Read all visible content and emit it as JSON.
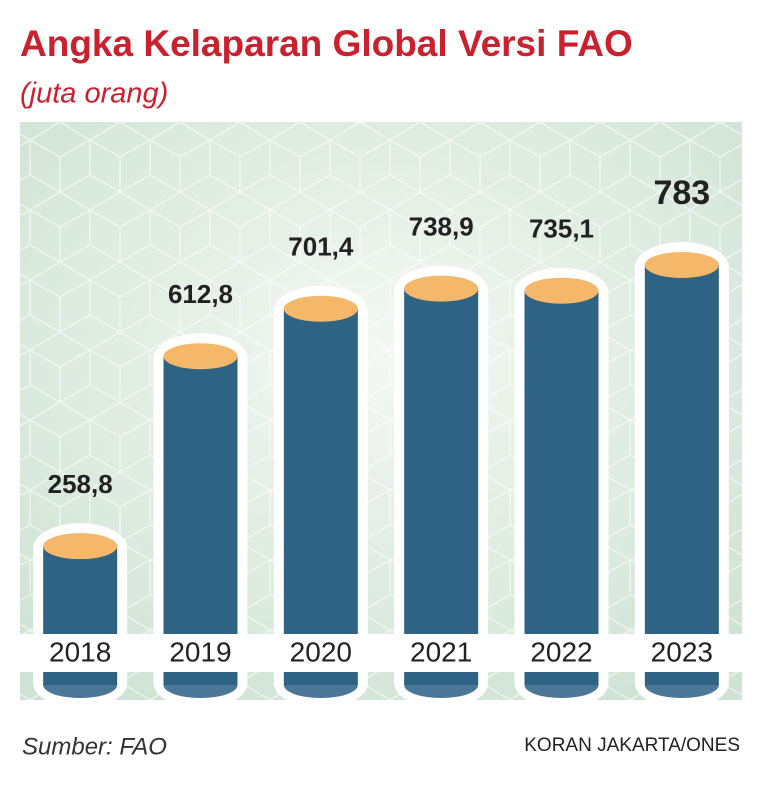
{
  "chart_data": {
    "type": "bar",
    "title": "Angka Kelaparan Global Versi FAO",
    "subtitle": "(juta orang)",
    "categories": [
      "2018",
      "2019",
      "2020",
      "2021",
      "2022",
      "2023"
    ],
    "values": [
      258.8,
      612.8,
      701.4,
      738.9,
      735.1,
      783
    ],
    "value_labels": [
      "258,8",
      "612,8",
      "701,4",
      "738,9",
      "735,1",
      "783"
    ],
    "color": "#2e6384",
    "top_color": "#f5b86b",
    "source": "Sumber: FAO",
    "credit": "KORAN JAKARTA/ONES"
  }
}
